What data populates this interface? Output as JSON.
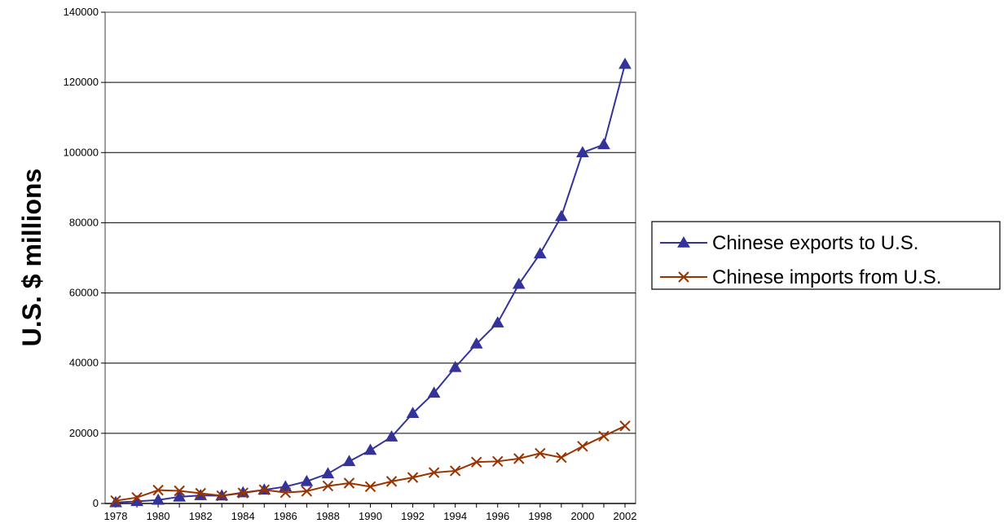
{
  "chart_data": {
    "type": "line",
    "title": "",
    "xlabel": "",
    "ylabel": "U.S. $ millions",
    "x": [
      1978,
      1979,
      1980,
      1981,
      1982,
      1983,
      1984,
      1985,
      1986,
      1987,
      1988,
      1989,
      1990,
      1991,
      1992,
      1993,
      1994,
      1995,
      1996,
      1997,
      1998,
      1999,
      2000,
      2001,
      2002
    ],
    "x_tick_labels": [
      "1978",
      "1980",
      "1982",
      "1984",
      "1986",
      "1988",
      "1990",
      "1992",
      "1994",
      "1996",
      "1998",
      "2000",
      "2002"
    ],
    "y_tick_labels": [
      "0",
      "20000",
      "40000",
      "60000",
      "80000",
      "100000",
      "120000",
      "140000"
    ],
    "ylim": [
      0,
      140000
    ],
    "xlim": [
      1978,
      2002
    ],
    "grid": "horizontal",
    "legend_position": "right",
    "series": [
      {
        "name": "Chinese exports to U.S.",
        "marker": "triangle",
        "color": "#333399",
        "values": [
          300,
          600,
          1000,
          1900,
          2300,
          2200,
          3100,
          3900,
          4800,
          6300,
          8500,
          12000,
          15200,
          19000,
          25700,
          31500,
          38800,
          45500,
          51500,
          62500,
          71200,
          81800,
          100000,
          102300,
          125200
        ]
      },
      {
        "name": "Chinese imports from U.S.",
        "marker": "x",
        "color": "#993300",
        "values": [
          800,
          1700,
          3800,
          3600,
          2900,
          2200,
          3000,
          3900,
          3100,
          3500,
          5000,
          5800,
          4800,
          6300,
          7400,
          8800,
          9300,
          11800,
          12000,
          12800,
          14300,
          13100,
          16300,
          19200,
          22100
        ]
      }
    ]
  }
}
